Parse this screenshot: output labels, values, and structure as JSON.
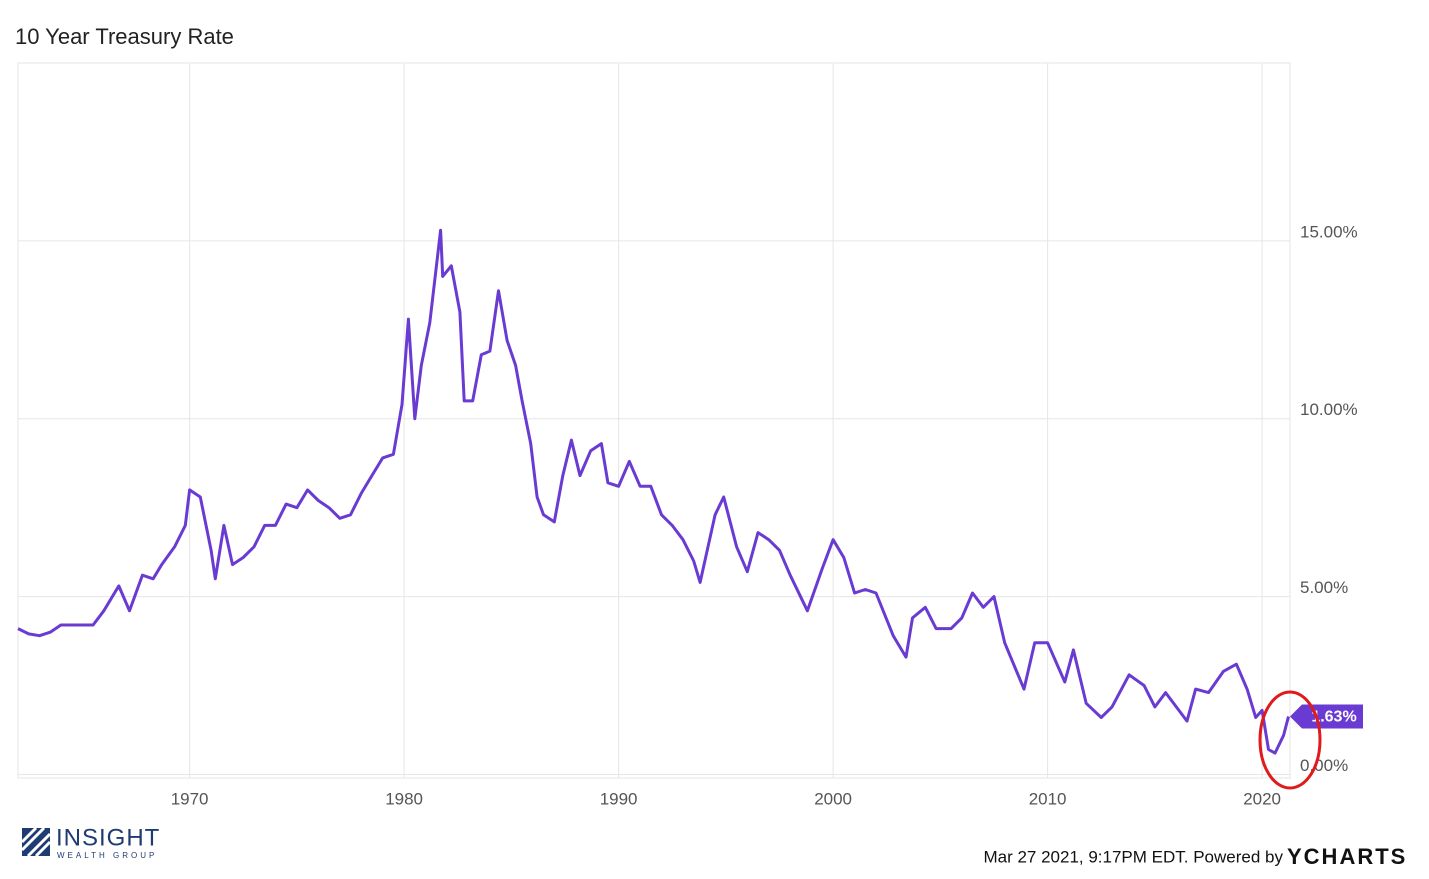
{
  "chart_data": {
    "type": "line",
    "title": "10 Year Treasury Rate",
    "x": [
      1962.0,
      1962.5,
      1963.0,
      1963.5,
      1964.0,
      1965.0,
      1965.5,
      1966.0,
      1966.7,
      1967.2,
      1967.8,
      1968.3,
      1968.7,
      1969.3,
      1969.8,
      1970.0,
      1970.5,
      1971.0,
      1971.2,
      1971.6,
      1972.0,
      1972.5,
      1973.0,
      1973.5,
      1974.0,
      1974.5,
      1975.0,
      1975.5,
      1976.0,
      1976.5,
      1977.0,
      1977.5,
      1978.0,
      1978.5,
      1979.0,
      1979.5,
      1979.9,
      1980.2,
      1980.5,
      1980.8,
      1981.2,
      1981.7,
      1981.8,
      1982.2,
      1982.6,
      1982.8,
      1983.2,
      1983.6,
      1984.0,
      1984.4,
      1984.8,
      1985.2,
      1985.5,
      1985.9,
      1986.2,
      1986.5,
      1987.0,
      1987.4,
      1987.8,
      1988.2,
      1988.7,
      1989.2,
      1989.5,
      1990.0,
      1990.5,
      1991.0,
      1991.5,
      1992.0,
      1992.5,
      1993.0,
      1993.5,
      1993.8,
      1994.5,
      1994.9,
      1995.5,
      1996.0,
      1996.5,
      1997.0,
      1997.5,
      1998.0,
      1998.8,
      1999.5,
      2000.0,
      2000.5,
      2001.0,
      2001.5,
      2002.0,
      2002.8,
      2003.4,
      2003.7,
      2004.3,
      2004.8,
      2005.5,
      2006.0,
      2006.5,
      2007.0,
      2007.5,
      2008.0,
      2008.9,
      2009.4,
      2010.0,
      2010.8,
      2011.2,
      2011.8,
      2012.5,
      2013.0,
      2013.8,
      2014.5,
      2015.0,
      2015.5,
      2016.5,
      2016.9,
      2017.5,
      2018.2,
      2018.8,
      2019.3,
      2019.7,
      2020.0,
      2020.3,
      2020.6,
      2021.0,
      2021.23
    ],
    "series": [
      {
        "name": "10 Year Treasury Rate",
        "color": "#6a3bd2",
        "values": [
          4.1,
          3.95,
          3.9,
          4.0,
          4.2,
          4.2,
          4.2,
          4.6,
          5.3,
          4.6,
          5.6,
          5.5,
          5.9,
          6.4,
          7.0,
          8.0,
          7.8,
          6.3,
          5.5,
          7.0,
          5.9,
          6.1,
          6.4,
          7.0,
          7.0,
          7.6,
          7.5,
          8.0,
          7.7,
          7.5,
          7.2,
          7.3,
          7.9,
          8.4,
          8.9,
          9.0,
          10.4,
          12.8,
          10.0,
          11.5,
          12.7,
          15.3,
          14.0,
          14.3,
          13.0,
          10.5,
          10.5,
          11.8,
          11.9,
          13.6,
          12.2,
          11.5,
          10.5,
          9.3,
          7.8,
          7.3,
          7.1,
          8.4,
          9.4,
          8.4,
          9.1,
          9.3,
          8.2,
          8.1,
          8.8,
          8.1,
          8.1,
          7.3,
          7.0,
          6.6,
          6.0,
          5.4,
          7.3,
          7.8,
          6.4,
          5.7,
          6.8,
          6.6,
          6.3,
          5.6,
          4.6,
          5.8,
          6.6,
          6.1,
          5.1,
          5.2,
          5.1,
          3.9,
          3.3,
          4.4,
          4.7,
          4.1,
          4.1,
          4.4,
          5.1,
          4.7,
          5.0,
          3.7,
          2.4,
          3.7,
          3.7,
          2.6,
          3.5,
          2.0,
          1.6,
          1.9,
          2.8,
          2.5,
          1.9,
          2.3,
          1.5,
          2.4,
          2.3,
          2.9,
          3.1,
          2.4,
          1.6,
          1.8,
          0.7,
          0.6,
          1.1,
          1.63
        ]
      }
    ],
    "end_label": {
      "value": 1.63,
      "label": "1.63%"
    },
    "xlim": [
      1962,
      2021.3
    ],
    "xticks": [
      1970,
      1980,
      1990,
      2000,
      2010,
      2020
    ],
    "ylim": [
      -0.1,
      20
    ],
    "yticks": [
      {
        "value": 0,
        "label": "0.00%"
      },
      {
        "value": 5,
        "label": "5.00%"
      },
      {
        "value": 10,
        "label": "10.00%"
      },
      {
        "value": 15,
        "label": "15.00%"
      }
    ],
    "grid": true
  },
  "logo": {
    "name": "INSIGHT",
    "tagline": "WEALTH GROUP"
  },
  "footer": {
    "timestamp": "Mar 27 2021, 9:17PM EDT. Powered by",
    "brand": "YCHARTS"
  }
}
